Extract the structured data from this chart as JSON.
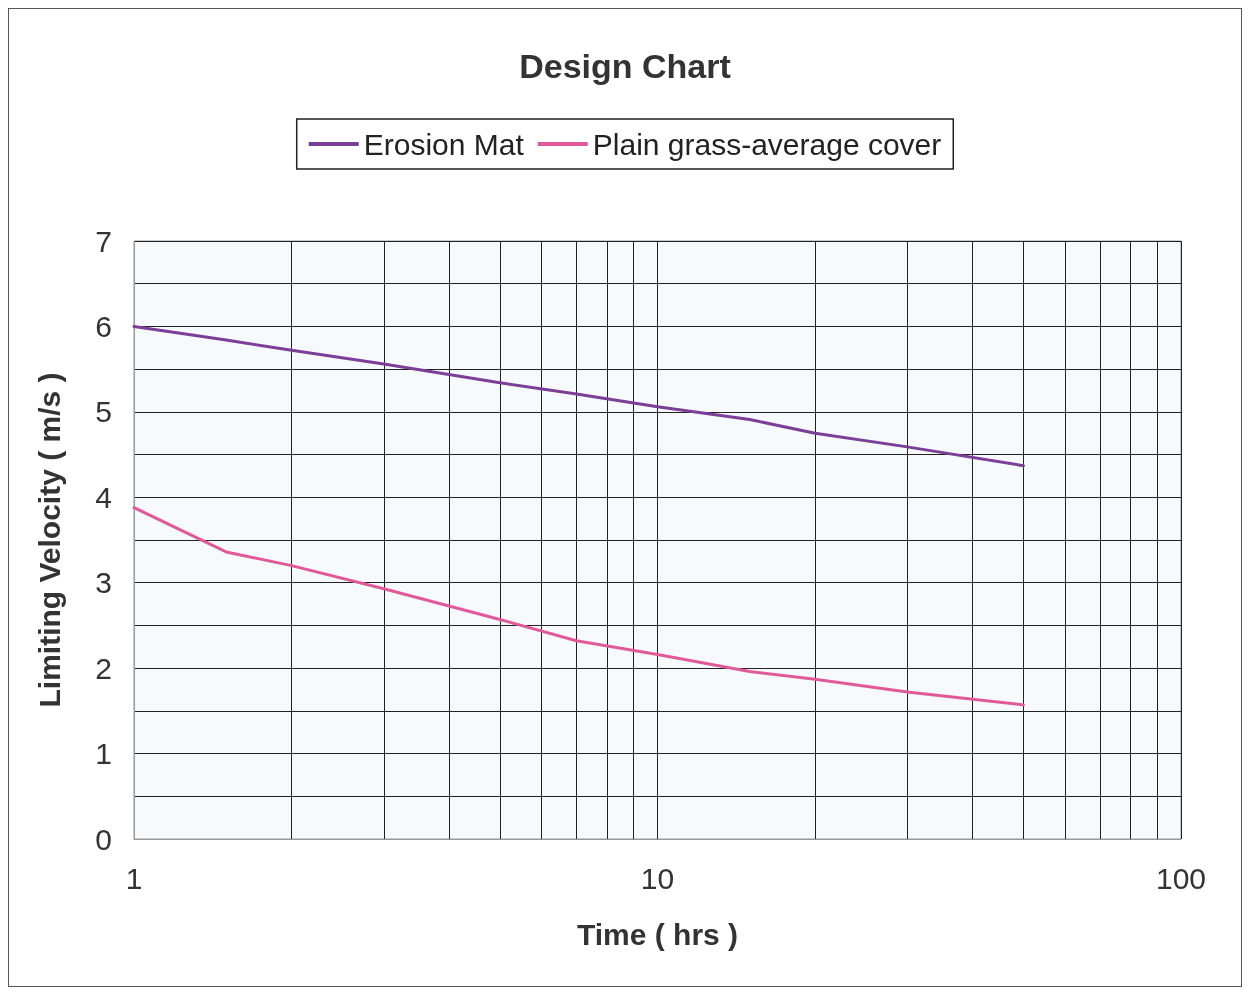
{
  "chart_data": {
    "type": "line",
    "title": "Design Chart",
    "xlabel": "Time ( hrs )",
    "ylabel": "Limiting Velocity ( m/s )",
    "log": "x",
    "xlim": [
      1,
      100
    ],
    "xticks": [
      1,
      {
        "value": 2,
        "label": null
      },
      {
        "value": 3,
        "label": null
      },
      {
        "value": 4,
        "label": null
      },
      {
        "value": 5,
        "label": null
      },
      {
        "value": 6,
        "label": null
      },
      {
        "value": 7,
        "label": null
      },
      {
        "value": 8,
        "label": null
      },
      {
        "value": 9,
        "label": null
      },
      10,
      {
        "value": 20,
        "label": null
      },
      {
        "value": 30,
        "label": null
      },
      {
        "value": 40,
        "label": null
      },
      {
        "value": 50,
        "label": null
      },
      {
        "value": 60,
        "label": null
      },
      {
        "value": 70,
        "label": null
      },
      {
        "value": 80,
        "label": null
      },
      {
        "value": 90,
        "label": null
      },
      100
    ],
    "ylim": [
      0,
      7
    ],
    "yticks": [
      0,
      {
        "value": 0.5,
        "label": null
      },
      1,
      {
        "value": 1.5,
        "label": null
      },
      2,
      {
        "value": 2.5,
        "label": null
      },
      3,
      {
        "value": 3.5,
        "label": null
      },
      4,
      {
        "value": 4.5,
        "label": null
      },
      5,
      {
        "value": 5.5,
        "label": null
      },
      6,
      {
        "value": 6.5,
        "label": null
      },
      7
    ],
    "grid": true,
    "legend": "top",
    "marker": "none",
    "line_style": "solid",
    "series": [
      {
        "name": "Erosion Mat",
        "color": "#7b3f98",
        "x": [
          1,
          1.5,
          2,
          3,
          5,
          7,
          10,
          15,
          20,
          30,
          50
        ],
        "values": [
          6.0,
          5.84,
          5.72,
          5.56,
          5.34,
          5.21,
          5.06,
          4.91,
          4.75,
          4.59,
          4.37
        ]
      },
      {
        "name": "Plain grass-average cover",
        "color": "#e05a9a",
        "x": [
          1,
          1.5,
          2,
          3,
          5,
          7,
          10,
          15,
          20,
          30,
          50
        ],
        "values": [
          3.88,
          3.36,
          3.2,
          2.93,
          2.57,
          2.32,
          2.16,
          1.96,
          1.87,
          1.72,
          1.57
        ]
      }
    ]
  }
}
